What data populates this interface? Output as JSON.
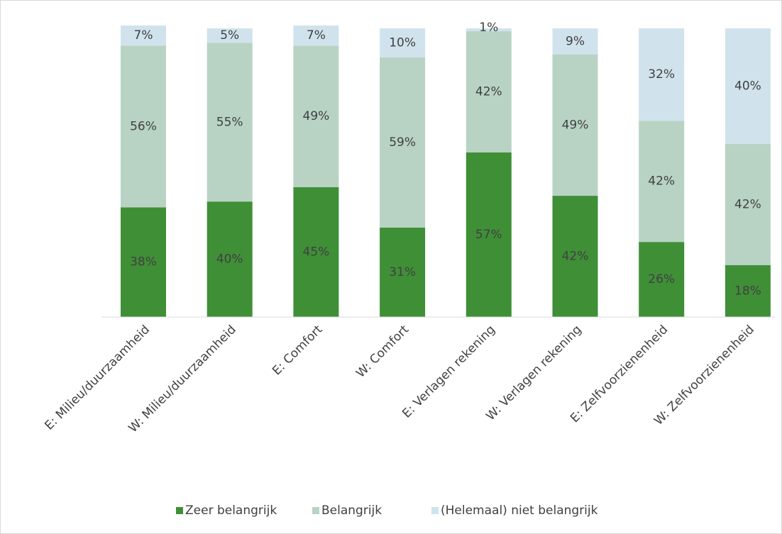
{
  "chart_data": {
    "type": "stacked_bar",
    "categories": [
      "E: Milieu/duurzaamheid",
      "W: Milieu/duurzaamheid",
      "E: Comfort",
      "W: Comfort",
      "E: Verlagen rekening",
      "W: Verlagen rekening",
      "E: Zelfvoorzienenheid",
      "W: Zelfvoorzienenheid"
    ],
    "series": [
      {
        "name": "Zeer belangrijk",
        "color": "#3f8f37",
        "values": [
          38,
          40,
          45,
          31,
          57,
          42,
          26,
          18
        ],
        "value_labels": [
          "38%",
          "40%",
          "45%",
          "31%",
          "57%",
          "42%",
          "26%",
          "18%"
        ]
      },
      {
        "name": "Belangrijk",
        "color": "#b8d3c4",
        "values": [
          56,
          55,
          49,
          59,
          42,
          49,
          42,
          42
        ],
        "value_labels": [
          "56%",
          "55%",
          "49%",
          "59%",
          "42%",
          "49%",
          "42%",
          "42%"
        ]
      },
      {
        "name": "(Helemaal) niet belangrijk",
        "color": "#d0e3ed",
        "values": [
          7,
          5,
          7,
          10,
          1,
          9,
          32,
          40
        ],
        "value_labels": [
          "7%",
          "5%",
          "7%",
          "10%",
          "1%",
          "9%",
          "32%",
          "40%"
        ]
      }
    ],
    "ylim": [
      0,
      100
    ],
    "legend": "bottom"
  }
}
